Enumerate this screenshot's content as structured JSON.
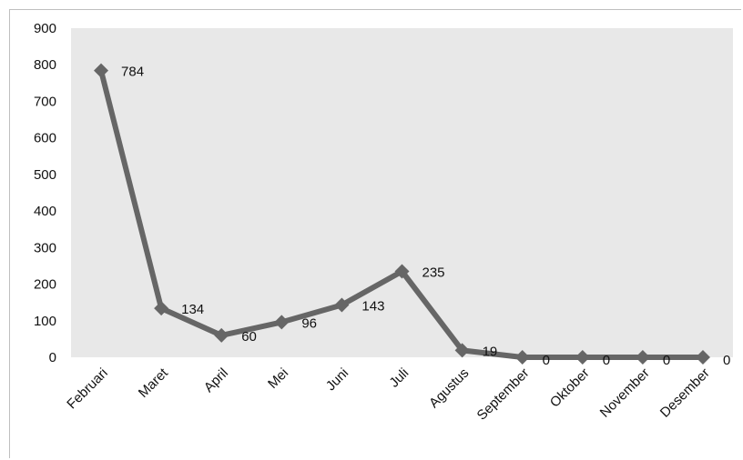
{
  "chart_data": {
    "type": "line",
    "title": "",
    "xlabel": "",
    "ylabel": "",
    "categories": [
      "Februari",
      "Maret",
      "April",
      "Mei",
      "Juni",
      "Juli",
      "Agustus",
      "September",
      "Oktober",
      "November",
      "Desember"
    ],
    "series": [
      {
        "values": [
          784,
          134,
          60,
          96,
          143,
          235,
          19,
          0,
          0,
          0,
          0
        ]
      }
    ],
    "ylim": [
      0,
      900
    ],
    "yticks": [
      0,
      100,
      200,
      300,
      400,
      500,
      600,
      700,
      800,
      900
    ],
    "grid": false,
    "legend": "none",
    "marker": "diamond",
    "colors": {
      "line": "#666666",
      "plot_background": "#e8e8e8",
      "frame": "#bfbfbf"
    }
  }
}
